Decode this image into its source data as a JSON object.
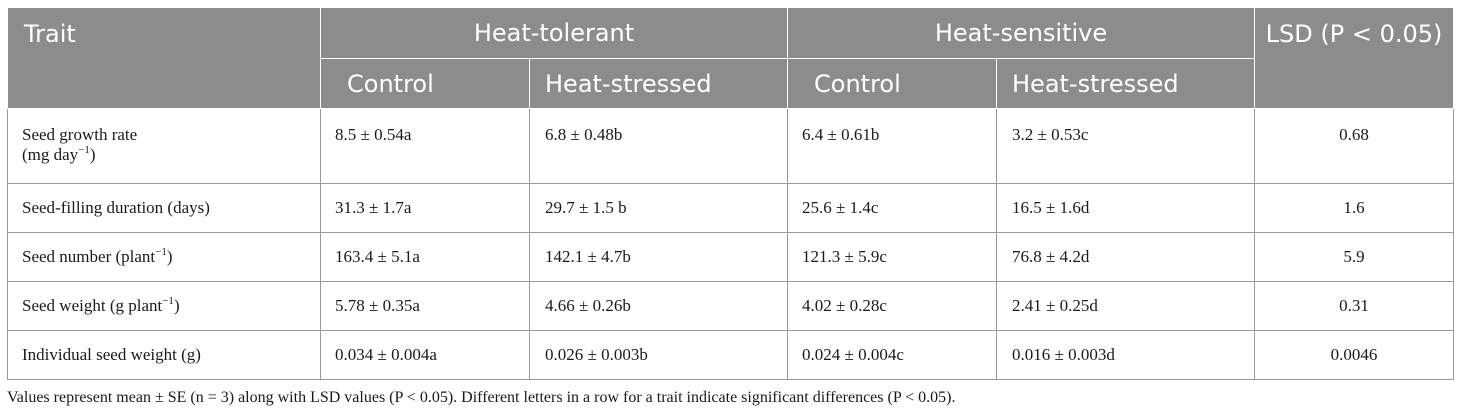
{
  "table": {
    "headers": {
      "trait": "Trait",
      "heat_tolerant": "Heat-tolerant",
      "heat_sensitive": "Heat-sensitive",
      "lsd": "LSD (P < 0.05)",
      "control": "Control",
      "heat_stressed": "Heat-stressed"
    },
    "rows": [
      {
        "trait_line1": "Seed growth rate",
        "trait_line2": "(mg day",
        "trait_sup": "−1",
        "trait_line2_end": ")",
        "tol_control": "8.5 ± 0.54a",
        "tol_stressed": "6.8 ± 0.48b",
        "sens_control": "6.4 ± 0.61b",
        "sens_stressed": "3.2 ± 0.53c",
        "lsd": "0.68"
      },
      {
        "trait": "Seed-filling duration (days)",
        "tol_control": "31.3 ± 1.7a",
        "tol_stressed": "29.7 ± 1.5 b",
        "sens_control": "25.6 ± 1.4c",
        "sens_stressed": "16.5 ± 1.6d",
        "lsd": "1.6"
      },
      {
        "trait": "Seed number (plant",
        "trait_sup": "−1",
        "trait_end": ")",
        "tol_control": "163.4 ± 5.1a",
        "tol_stressed": "142.1 ± 4.7b",
        "sens_control": "121.3 ± 5.9c",
        "sens_stressed": "76.8 ± 4.2d",
        "lsd": "5.9"
      },
      {
        "trait": "Seed weight (g plant",
        "trait_sup": "−1",
        "trait_end": ")",
        "tol_control": "5.78 ± 0.35a",
        "tol_stressed": "4.66 ± 0.26b",
        "sens_control": "4.02 ± 0.28c",
        "sens_stressed": "2.41 ± 0.25d",
        "lsd": "0.31"
      },
      {
        "trait": "Individual seed weight (g)",
        "tol_control": "0.034 ± 0.004a",
        "tol_stressed": "0.026 ± 0.003b",
        "sens_control": "0.024 ± 0.004c",
        "sens_stressed": "0.016 ± 0.003d",
        "lsd": "0.0046"
      }
    ]
  },
  "footnote": "Values represent mean ± SE (n = 3) along with LSD values (P < 0.05). Different letters in a row for a trait indicate significant differences (P < 0.05).",
  "colors": {
    "header_bg": "#8c8c8c",
    "header_text": "#ffffff",
    "border": "#9a9a9a"
  }
}
